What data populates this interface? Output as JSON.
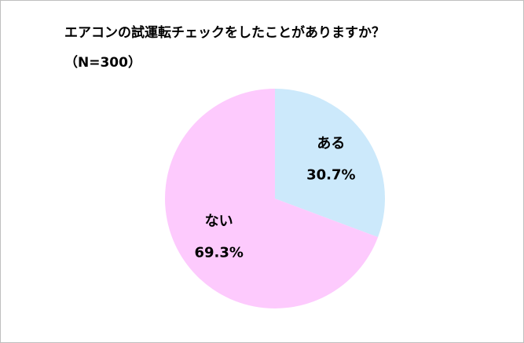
{
  "chart_data": {
    "type": "pie",
    "title": "エアコンの試運転チェックをしたことがありますか？",
    "subtitle": "（N=300）",
    "categories": [
      "ある",
      "ない"
    ],
    "values": [
      30.7,
      69.3
    ],
    "value_labels": [
      "30.7%",
      "69.3%"
    ],
    "colors": [
      "#cce9fb",
      "#fdcafd"
    ]
  }
}
